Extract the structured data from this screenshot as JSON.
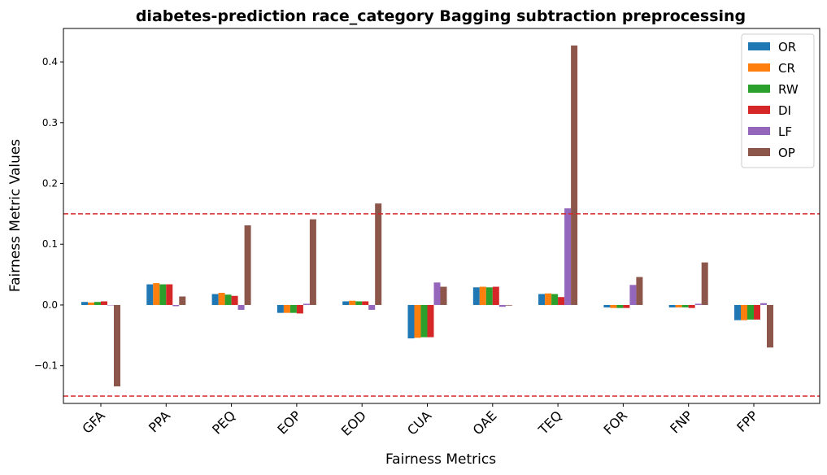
{
  "chart_data": {
    "type": "bar",
    "title": "diabetes-prediction race_category Bagging subtraction preprocessing",
    "xlabel": "Fairness Metrics",
    "ylabel": "Fairness Metric Values",
    "categories": [
      "GFA",
      "PPA",
      "PEQ",
      "EOP",
      "EOD",
      "CUA",
      "OAE",
      "TEQ",
      "FOR",
      "FNP",
      "FPP"
    ],
    "yticks": [
      -0.1,
      0.0,
      0.1,
      0.2,
      0.3,
      0.4
    ],
    "ytick_labels": [
      "−0.1",
      "0.0",
      "0.1",
      "0.2",
      "0.3",
      "0.4"
    ],
    "ylim": [
      -0.162,
      0.455
    ],
    "thresholds": [
      0.15,
      -0.15
    ],
    "threshold_color": "#d62728",
    "grid": false,
    "legend_position": "top-right",
    "series": [
      {
        "name": "OR",
        "color": "#1f77b4",
        "values": [
          0.005,
          0.034,
          0.018,
          -0.013,
          0.006,
          -0.055,
          0.029,
          0.018,
          -0.004,
          -0.004,
          -0.025
        ]
      },
      {
        "name": "CR",
        "color": "#ff7f0e",
        "values": [
          0.004,
          0.036,
          0.02,
          -0.013,
          0.007,
          -0.054,
          0.03,
          0.019,
          -0.005,
          -0.004,
          -0.025
        ]
      },
      {
        "name": "RW",
        "color": "#2ca02c",
        "values": [
          0.005,
          0.034,
          0.017,
          -0.013,
          0.006,
          -0.053,
          0.029,
          0.018,
          -0.005,
          -0.004,
          -0.024
        ]
      },
      {
        "name": "DI",
        "color": "#d62728",
        "values": [
          0.006,
          0.034,
          0.015,
          -0.014,
          0.006,
          -0.053,
          0.03,
          0.013,
          -0.005,
          -0.005,
          -0.024
        ]
      },
      {
        "name": "LF",
        "color": "#9467bd",
        "values": [
          0.0,
          -0.002,
          -0.008,
          0.002,
          -0.008,
          0.037,
          -0.003,
          0.159,
          0.033,
          0.002,
          0.003
        ]
      },
      {
        "name": "OP",
        "color": "#8c564b",
        "values": [
          -0.134,
          0.014,
          0.131,
          0.141,
          0.167,
          0.03,
          -0.001,
          0.427,
          0.046,
          0.07,
          -0.07
        ]
      }
    ]
  }
}
